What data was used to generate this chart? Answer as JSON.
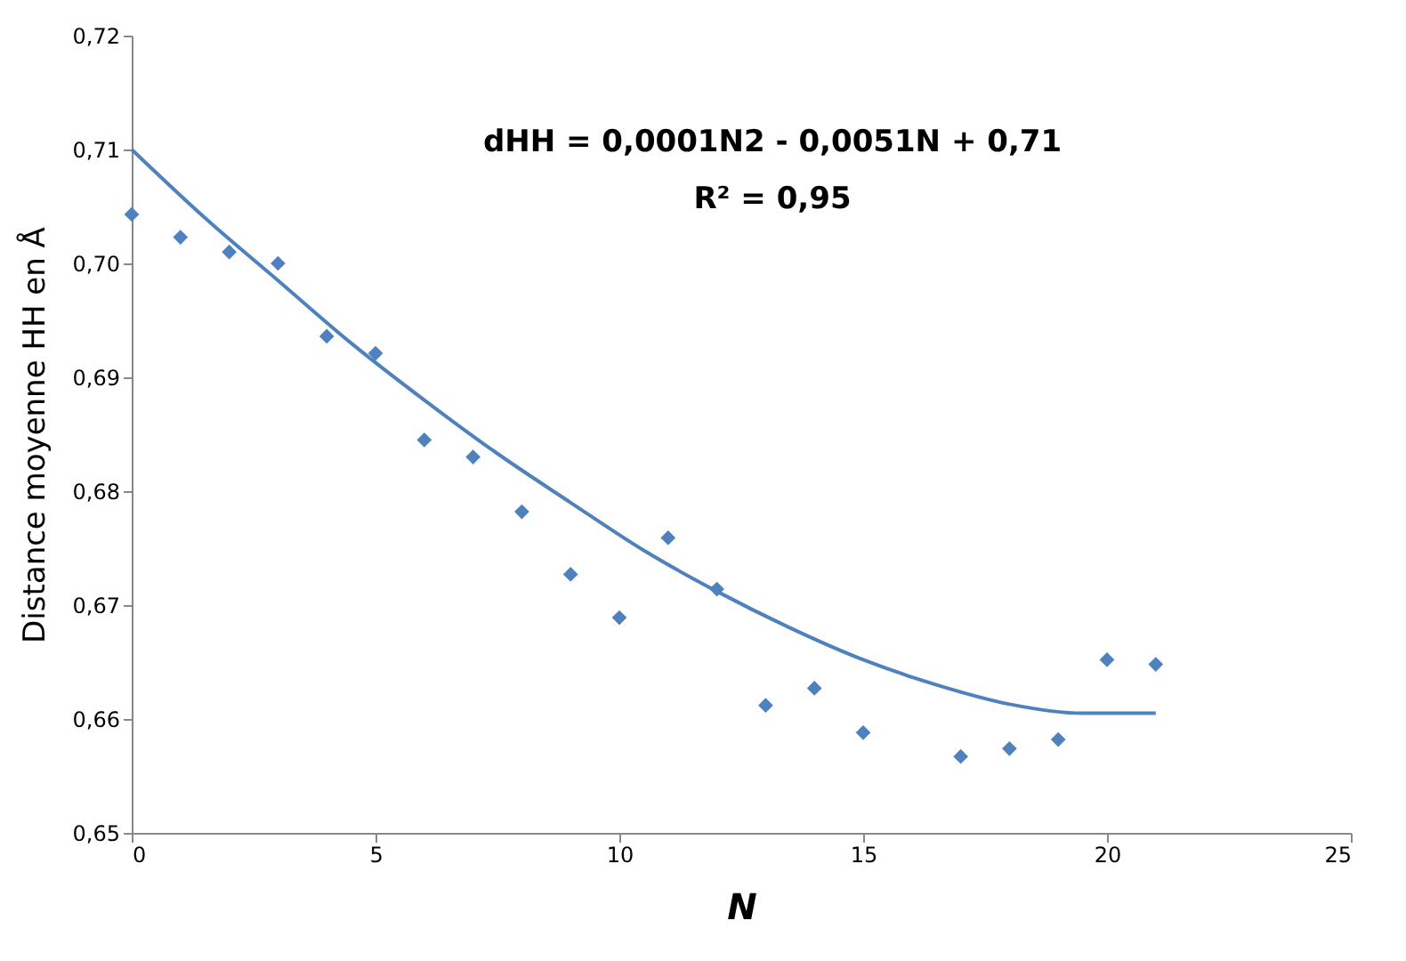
{
  "chart_data": {
    "type": "scatter",
    "xlabel": "N",
    "ylabel": "Distance moyenne HH en Å",
    "x": [
      0,
      1,
      2,
      3,
      4,
      5,
      6,
      7,
      8,
      9,
      10,
      11,
      12,
      13,
      14,
      15,
      17,
      18,
      19,
      20,
      21
    ],
    "series": [
      {
        "color": "#4f81bd",
        "marker": "diamond",
        "values": [
          0.7043,
          0.7023,
          0.701,
          0.7,
          0.6936,
          0.6921,
          0.6845,
          0.683,
          0.6782,
          0.6727,
          0.6689,
          0.6759,
          0.6714,
          0.6612,
          0.6627,
          0.6588,
          0.6567,
          0.6574,
          0.6582,
          0.6652,
          0.6648
        ]
      },
      {
        "type": "line",
        "color": "#4f81bd",
        "x": [
          0,
          1.5,
          3,
          4.5,
          6,
          7.5,
          9,
          10.5,
          12,
          13.5,
          15,
          16.5,
          18,
          19.5,
          21
        ],
        "values": [
          0.71,
          0.704,
          0.6985,
          0.693,
          0.688,
          0.6833,
          0.679,
          0.6748,
          0.6712,
          0.668,
          0.6652,
          0.663,
          0.6613,
          0.6605,
          0.6605
        ]
      }
    ],
    "xlim": [
      0,
      25
    ],
    "xticks": [
      0,
      5,
      10,
      15,
      20,
      25
    ],
    "ylim": [
      0.65,
      0.72
    ],
    "yticks": [
      {
        "value": 0.65,
        "label": "0,65"
      },
      {
        "value": 0.66,
        "label": "0,66"
      },
      {
        "value": 0.67,
        "label": "0,67"
      },
      {
        "value": 0.68,
        "label": "0,68"
      },
      {
        "value": 0.69,
        "label": "0,69"
      },
      {
        "value": 0.7,
        "label": "0,70"
      },
      {
        "value": 0.71,
        "label": "0,71"
      },
      {
        "value": 0.72,
        "label": "0,72"
      }
    ],
    "annotations": [
      "dHH = 0,0001N2 - 0,0051N + 0,71",
      "R² = 0,95"
    ],
    "grid": false
  }
}
